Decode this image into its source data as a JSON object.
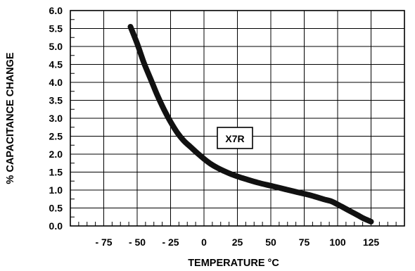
{
  "chart_data": {
    "type": "line",
    "title": "",
    "xlabel": "TEMPERATURE °C",
    "ylabel": "% CAPACITANCE CHANGE",
    "xlim": [
      -100,
      150
    ],
    "ylim": [
      0,
      6
    ],
    "x_ticks": [
      -75,
      -50,
      -25,
      0,
      25,
      50,
      75,
      100,
      125
    ],
    "x_tick_labels": [
      "- 75",
      "- 50",
      "- 25",
      "0",
      "25",
      "50",
      "75",
      "100",
      "125"
    ],
    "y_ticks": [
      0,
      0.5,
      1,
      1.5,
      2,
      2.5,
      3,
      3.5,
      4,
      4.5,
      5,
      5.5,
      6
    ],
    "y_tick_labels": [
      "0.0",
      "0.5",
      "1.0",
      "1.5",
      "2.0",
      "2.5",
      "3.0",
      "3.5",
      "4.0",
      "4.5",
      "5.0",
      "5.5",
      "6.0"
    ],
    "grid": true,
    "annotation": "X7R",
    "series": [
      {
        "x": [
          -55,
          -50,
          -45,
          -40,
          -35,
          -30,
          -25,
          -20,
          -15,
          -10,
          -5,
          0,
          5,
          10,
          15,
          20,
          25,
          30,
          40,
          50,
          60,
          70,
          80,
          90,
          95,
          100,
          105,
          110,
          115,
          120,
          125
        ],
        "y": [
          5.55,
          5.08,
          4.55,
          4.1,
          3.65,
          3.25,
          2.9,
          2.6,
          2.37,
          2.2,
          2.03,
          1.87,
          1.73,
          1.62,
          1.53,
          1.45,
          1.38,
          1.32,
          1.21,
          1.12,
          1.03,
          0.94,
          0.85,
          0.74,
          0.69,
          0.6,
          0.5,
          0.4,
          0.3,
          0.2,
          0.12
        ],
        "color": "#111111"
      }
    ]
  }
}
